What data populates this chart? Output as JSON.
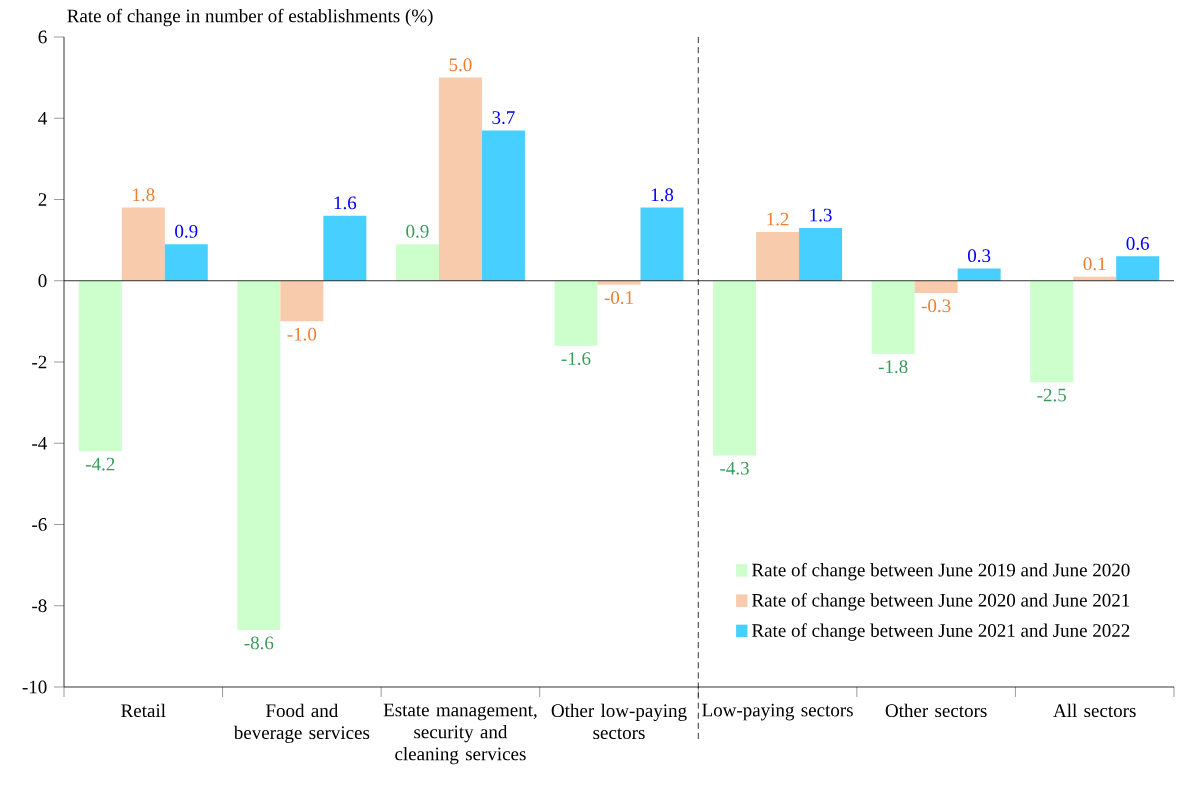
{
  "chart_data": {
    "type": "bar",
    "ylabel": "Rate of change in number of establishments (%)",
    "categories": [
      "Retail",
      "Food and beverage services",
      "Estate management, security and cleaning services",
      "Other low-paying sectors",
      "Low-paying sectors",
      "Other sectors",
      "All sectors"
    ],
    "series": [
      {
        "name": "Rate of change between June 2019 and June 2020",
        "color": "#ccffcc",
        "values": [
          -4.2,
          -8.6,
          0.9,
          -1.6,
          -4.3,
          -1.8,
          -2.5
        ],
        "value_labels": [
          "-4.2",
          "-8.6",
          "0.9",
          "-1.6",
          "-4.3",
          "-1.8",
          "-2.5"
        ]
      },
      {
        "name": "Rate of change between June 2020 and June 2021",
        "color": "#f8cbad",
        "values": [
          1.8,
          -1.0,
          5.0,
          -0.1,
          1.2,
          -0.3,
          0.1
        ],
        "value_labels": [
          "1.8",
          "-1.0",
          "5.0",
          "-0.1",
          "1.2",
          "-0.3",
          "0.1"
        ]
      },
      {
        "name": "Rate of change between June 2021 and June 2022",
        "color": "#47cfff",
        "values": [
          0.9,
          1.6,
          3.7,
          1.8,
          1.3,
          0.3,
          0.6
        ],
        "value_labels": [
          "0.9",
          "1.6",
          "3.7",
          "1.8",
          "1.3",
          "0.3",
          "0.6"
        ]
      }
    ],
    "ylim": [
      -10,
      6
    ],
    "yticks": [
      -10,
      -8,
      -6,
      -4,
      -2,
      0,
      2,
      4,
      6
    ],
    "ref_lines": [
      {
        "axis": "y",
        "value": 0
      }
    ],
    "legend": "bottom right"
  }
}
